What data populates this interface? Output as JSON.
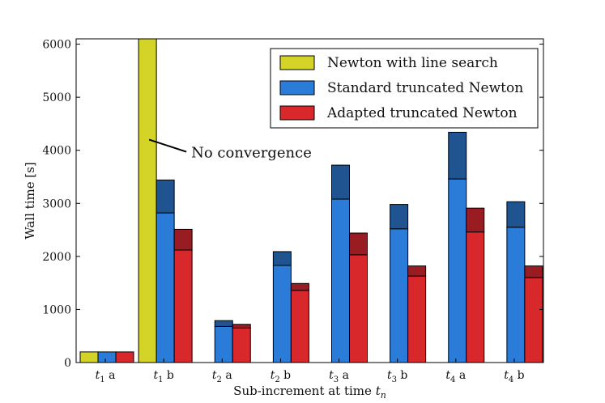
{
  "chart_data": {
    "type": "bar",
    "subtype": "grouped-stacked",
    "xlabel": "Sub-increment at time t_n",
    "xlabel_parts": [
      "Sub-increment at time ",
      "t",
      "n"
    ],
    "ylabel": "Wall time [s]",
    "ylim": [
      0,
      6100
    ],
    "yticks": [
      0,
      1000,
      2000,
      3000,
      4000,
      5000,
      6000
    ],
    "grid": false,
    "legend_position": "top-right",
    "categories": [
      "t1 a",
      "t1 b",
      "t2 a",
      "t2 b",
      "t3 a",
      "t3 b",
      "t4 a",
      "t4 b"
    ],
    "category_parts": [
      {
        "t": "t",
        "sub": "1",
        "suffix": " a"
      },
      {
        "t": "t",
        "sub": "1",
        "suffix": " b"
      },
      {
        "t": "t",
        "sub": "2",
        "suffix": " a"
      },
      {
        "t": "t",
        "sub": "2",
        "suffix": " b"
      },
      {
        "t": "t",
        "sub": "3",
        "suffix": " a"
      },
      {
        "t": "t",
        "sub": "3",
        "suffix": " b"
      },
      {
        "t": "t",
        "sub": "4",
        "suffix": " a"
      },
      {
        "t": "t",
        "sub": "4",
        "suffix": " b"
      }
    ],
    "series": [
      {
        "name": "Newton with line search",
        "color": "#d4d428",
        "top_color": "#d4d428",
        "base": [
          200,
          6100,
          null,
          null,
          null,
          null,
          null,
          null
        ],
        "total": [
          200,
          6100,
          null,
          null,
          null,
          null,
          null,
          null
        ]
      },
      {
        "name": "Standard truncated Newton",
        "color": "#2b7bd9",
        "top_color": "#1f5490",
        "base": [
          200,
          2820,
          680,
          1830,
          3080,
          2520,
          3460,
          2550
        ],
        "total": [
          200,
          3440,
          790,
          2090,
          3720,
          2980,
          4340,
          3030
        ]
      },
      {
        "name": "Adapted truncated Newton",
        "color": "#d8282c",
        "top_color": "#981c22",
        "base": [
          200,
          2120,
          650,
          1360,
          2030,
          1630,
          2460,
          1600
        ],
        "total": [
          200,
          2510,
          720,
          1490,
          2440,
          1820,
          2910,
          1820
        ]
      }
    ],
    "annotations": [
      {
        "text": "No convergence",
        "category": "t1 b",
        "series": "Newton with line search",
        "at_value": 4200
      }
    ]
  }
}
